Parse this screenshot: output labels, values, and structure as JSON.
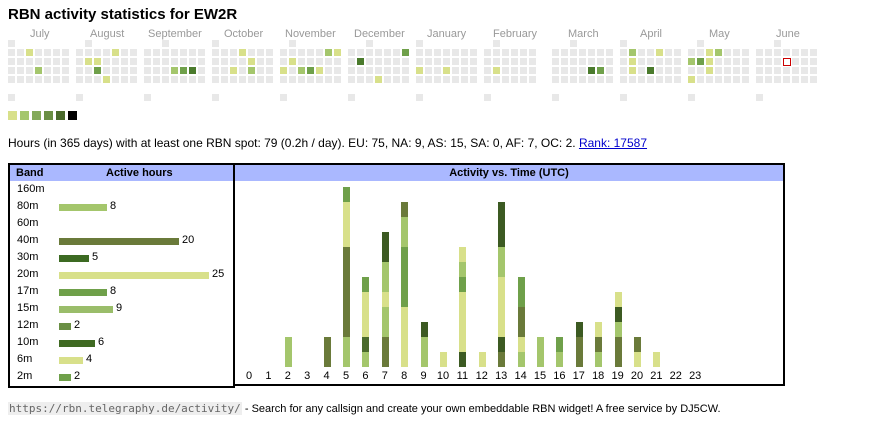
{
  "title": "RBN activity statistics for EW2R",
  "calendar": {
    "months": [
      "July",
      "August",
      "September",
      "October",
      "November",
      "December",
      "January",
      "February",
      "March",
      "April",
      "May",
      "June"
    ],
    "colors": {
      "empty": "#e8e8e8",
      "l1": "#d8e08a",
      "l2": "#a4c66c",
      "l3": "#6fa04a",
      "l4": "#4a7a2c",
      "l5": "#3c5a22"
    },
    "legend_colors": [
      "#d8e08a",
      "#a4c66c",
      "#84aa5a",
      "#6a8f44",
      "#4a6a2c",
      "#000000"
    ],
    "today_color": "#cc0000"
  },
  "summary": {
    "text": "Hours (in 365 days) with at least one RBN spot: 79 (0.2h / day). EU: 75, NA: 9, AS: 15, SA: 0, AF: 7, OC: 2.",
    "rank_link": "Rank: 17587"
  },
  "band_table": {
    "header_band": "Band",
    "header_hours": "Active hours",
    "rows": [
      {
        "band": "160m",
        "hours": null,
        "color": ""
      },
      {
        "band": "80m",
        "hours": 8,
        "color": "#a4c66c"
      },
      {
        "band": "60m",
        "hours": null,
        "color": ""
      },
      {
        "band": "40m",
        "hours": 20,
        "color": "#6a7a3a"
      },
      {
        "band": "30m",
        "hours": 5,
        "color": "#3c6a22"
      },
      {
        "band": "20m",
        "hours": 25,
        "color": "#d8e08a"
      },
      {
        "band": "17m",
        "hours": 8,
        "color": "#6fa04a"
      },
      {
        "band": "15m",
        "hours": 9,
        "color": "#9abd6a"
      },
      {
        "band": "12m",
        "hours": 2,
        "color": "#6a8f44"
      },
      {
        "band": "10m",
        "hours": 6,
        "color": "#3f6a22"
      },
      {
        "band": "6m",
        "hours": 4,
        "color": "#d8e08a"
      },
      {
        "band": "2m",
        "hours": 2,
        "color": "#6fa04a"
      }
    ]
  },
  "activity": {
    "header": "Activity vs. Time (UTC)",
    "hours": [
      "0",
      "1",
      "2",
      "3",
      "4",
      "5",
      "6",
      "7",
      "8",
      "9",
      "10",
      "11",
      "12",
      "13",
      "14",
      "15",
      "16",
      "17",
      "18",
      "19",
      "20",
      "21",
      "22",
      "23"
    ],
    "stacks": [
      [],
      [],
      [
        [
          "#a4c66c",
          2
        ]
      ],
      [],
      [
        [
          "#6a7a3a",
          2
        ]
      ],
      [
        [
          "#a4c66c",
          2
        ],
        [
          "#6a7a3a",
          6
        ],
        [
          "#d8e08a",
          3
        ],
        [
          "#6fa04a",
          1
        ]
      ],
      [
        [
          "#a4c66c",
          1
        ],
        [
          "#4a6a2c",
          1
        ],
        [
          "#d8e08a",
          3
        ],
        [
          "#6fa04a",
          1
        ]
      ],
      [
        [
          "#6a7a3a",
          2
        ],
        [
          "#a4c66c",
          2
        ],
        [
          "#d8e08a",
          1
        ],
        [
          "#a4c66c",
          2
        ],
        [
          "#3c5a22",
          2
        ]
      ],
      [
        [
          "#d8e08a",
          4
        ],
        [
          "#6fa04a",
          4
        ],
        [
          "#a4c66c",
          2
        ],
        [
          "#6a7a3a",
          1
        ]
      ],
      [
        [
          "#a4c66c",
          2
        ],
        [
          "#3c5a22",
          1
        ]
      ],
      [
        [
          "#d8e08a",
          1
        ]
      ],
      [
        [
          "#3c5a22",
          1
        ],
        [
          "#d8e08a",
          4
        ],
        [
          "#6fa04a",
          1
        ],
        [
          "#a4c66c",
          1
        ],
        [
          "#d8e08a",
          1
        ]
      ],
      [
        [
          "#d8e08a",
          1
        ]
      ],
      [
        [
          "#6a7a3a",
          1
        ],
        [
          "#3c5a22",
          1
        ],
        [
          "#d8e08a",
          4
        ],
        [
          "#a4c66c",
          2
        ],
        [
          "#3c5a22",
          3
        ]
      ],
      [
        [
          "#a4c66c",
          1
        ],
        [
          "#d8e08a",
          1
        ],
        [
          "#6a7a3a",
          2
        ],
        [
          "#6fa04a",
          1
        ],
        [
          "#6fa04a",
          1
        ]
      ],
      [
        [
          "#a4c66c",
          2
        ]
      ],
      [
        [
          "#a4c66c",
          1
        ],
        [
          "#6fa04a",
          1
        ]
      ],
      [
        [
          "#6a7a3a",
          2
        ],
        [
          "#3c5a22",
          1
        ]
      ],
      [
        [
          "#a4c66c",
          1
        ],
        [
          "#6a7a3a",
          1
        ],
        [
          "#d8e08a",
          1
        ]
      ],
      [
        [
          "#6a7a3a",
          2
        ],
        [
          "#a4c66c",
          1
        ],
        [
          "#3c5a22",
          1
        ],
        [
          "#d8e08a",
          1
        ]
      ],
      [
        [
          "#d8e08a",
          1
        ],
        [
          "#6a7a3a",
          1
        ]
      ],
      [
        [
          "#d8e08a",
          1
        ]
      ],
      [],
      []
    ]
  },
  "footer": {
    "url": "https://rbn.telegraphy.de/activity/",
    "text": " - Search for any callsign and create your own embeddable RBN widget! A free service by DJ5CW."
  }
}
